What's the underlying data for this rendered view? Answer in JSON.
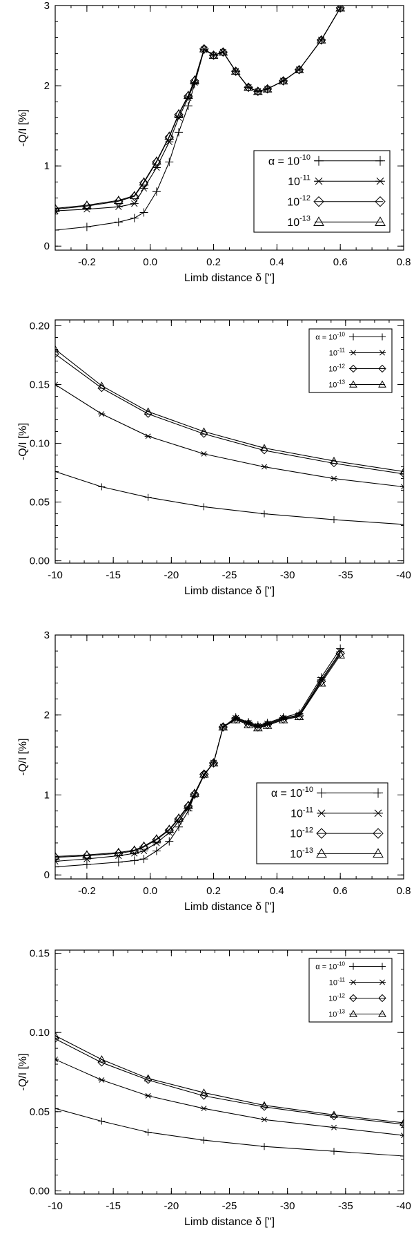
{
  "legend": {
    "alpha_label": "α = 10",
    "labels": [
      "-10",
      "-11",
      "-12",
      "-13"
    ],
    "base": "10"
  },
  "chart_data": [
    {
      "type": "line",
      "title": "",
      "xlabel": "Limb distance δ [\"]",
      "ylabel": "-Q/I [%]",
      "xlim": [
        -0.3,
        0.8
      ],
      "ylim": [
        -0.05,
        3.0
      ],
      "xticks": [
        -0.2,
        0.0,
        0.2,
        0.4,
        0.6,
        0.8
      ],
      "xtick_labels": [
        "-0.2",
        "0.0",
        "0.2",
        "0.4",
        "0.6",
        "0.8"
      ],
      "yticks": [
        0,
        1,
        2,
        3
      ],
      "ytick_labels": [
        "0",
        "1",
        "2",
        "3"
      ],
      "legend_position": "lower-right",
      "series": [
        {
          "name": "α = 10^-10",
          "marker": "plus",
          "x": [
            -0.3,
            -0.2,
            -0.1,
            -0.05,
            -0.02,
            0.02,
            0.06,
            0.09,
            0.12,
            0.14,
            0.17,
            0.2,
            0.23,
            0.27,
            0.31,
            0.34,
            0.37,
            0.42,
            0.47,
            0.54,
            0.6
          ],
          "y": [
            0.2,
            0.24,
            0.3,
            0.35,
            0.42,
            0.68,
            1.05,
            1.42,
            1.75,
            2.02,
            2.45,
            2.38,
            2.42,
            2.18,
            1.98,
            1.93,
            1.96,
            2.06,
            2.2,
            2.57,
            2.97
          ]
        },
        {
          "name": "α = 10^-11",
          "marker": "asterisk",
          "x": [
            -0.3,
            -0.2,
            -0.1,
            -0.05,
            -0.02,
            0.02,
            0.06,
            0.09,
            0.12,
            0.14,
            0.17,
            0.2,
            0.23,
            0.27,
            0.31,
            0.34,
            0.37,
            0.42,
            0.47,
            0.54,
            0.6
          ],
          "y": [
            0.44,
            0.46,
            0.49,
            0.53,
            0.72,
            0.98,
            1.3,
            1.6,
            1.85,
            2.04,
            2.45,
            2.38,
            2.42,
            2.18,
            1.98,
            1.93,
            1.96,
            2.06,
            2.2,
            2.57,
            2.97
          ]
        },
        {
          "name": "α = 10^-12",
          "marker": "diamond",
          "x": [
            -0.3,
            -0.2,
            -0.1,
            -0.05,
            -0.02,
            0.02,
            0.06,
            0.09,
            0.12,
            0.14,
            0.17,
            0.2,
            0.23,
            0.27,
            0.31,
            0.34,
            0.37,
            0.42,
            0.47,
            0.54,
            0.6
          ],
          "y": [
            0.46,
            0.5,
            0.56,
            0.62,
            0.79,
            1.05,
            1.36,
            1.64,
            1.87,
            2.06,
            2.46,
            2.38,
            2.42,
            2.18,
            1.98,
            1.93,
            1.96,
            2.06,
            2.2,
            2.57,
            2.97
          ]
        },
        {
          "name": "α = 10^-13",
          "marker": "triangle",
          "x": [
            -0.3,
            -0.2,
            -0.1,
            -0.05,
            -0.02,
            0.02,
            0.06,
            0.09,
            0.12,
            0.14,
            0.17,
            0.2,
            0.23,
            0.27,
            0.31,
            0.34,
            0.37,
            0.42,
            0.47,
            0.54,
            0.6
          ],
          "y": [
            0.47,
            0.51,
            0.57,
            0.63,
            0.8,
            1.06,
            1.37,
            1.65,
            1.88,
            2.07,
            2.46,
            2.38,
            2.42,
            2.18,
            1.98,
            1.93,
            1.96,
            2.06,
            2.2,
            2.57,
            2.97
          ]
        }
      ]
    },
    {
      "type": "line",
      "title": "",
      "xlabel": "Limb distance δ [\"]",
      "ylabel": "-Q/I [%]",
      "xlim": [
        -10,
        -40
      ],
      "ylim": [
        -0.002,
        0.205
      ],
      "xticks": [
        -10,
        -15,
        -20,
        -25,
        -30,
        -35,
        -40
      ],
      "xtick_labels": [
        "-10",
        "-15",
        "-20",
        "-25",
        "-30",
        "-35",
        "-40"
      ],
      "yticks": [
        0.0,
        0.05,
        0.1,
        0.15,
        0.2
      ],
      "ytick_labels": [
        "0.00",
        "0.05",
        "0.10",
        "0.15",
        "0.20"
      ],
      "legend_position": "top-right",
      "series": [
        {
          "name": "α = 10^-10",
          "marker": "plus",
          "x": [
            -10,
            -14,
            -18,
            -22.8,
            -28,
            -34,
            -40
          ],
          "y": [
            0.076,
            0.063,
            0.054,
            0.046,
            0.04,
            0.035,
            0.031
          ]
        },
        {
          "name": "α = 10^-11",
          "marker": "asterisk",
          "x": [
            -10,
            -14,
            -18,
            -22.8,
            -28,
            -34,
            -40
          ],
          "y": [
            0.15,
            0.125,
            0.106,
            0.091,
            0.08,
            0.07,
            0.063
          ]
        },
        {
          "name": "α = 10^-12",
          "marker": "diamond",
          "x": [
            -10,
            -14,
            -18,
            -22.8,
            -28,
            -34,
            -40
          ],
          "y": [
            0.176,
            0.147,
            0.125,
            0.108,
            0.094,
            0.083,
            0.074
          ]
        },
        {
          "name": "α = 10^-13",
          "marker": "triangle",
          "x": [
            -10,
            -14,
            -18,
            -22.8,
            -28,
            -34,
            -40
          ],
          "y": [
            0.18,
            0.149,
            0.127,
            0.11,
            0.096,
            0.085,
            0.076
          ]
        }
      ]
    },
    {
      "type": "line",
      "title": "",
      "xlabel": "Limb distance δ [\"]",
      "ylabel": "-Q/I [%]",
      "xlim": [
        -0.3,
        0.8
      ],
      "ylim": [
        -0.05,
        3.0
      ],
      "xticks": [
        -0.2,
        0.0,
        0.2,
        0.4,
        0.6,
        0.8
      ],
      "xtick_labels": [
        "-0.2",
        "0.0",
        "0.2",
        "0.4",
        "0.6",
        "0.8"
      ],
      "yticks": [
        0,
        1,
        2,
        3
      ],
      "ytick_labels": [
        "0",
        "1",
        "2",
        "3"
      ],
      "legend_position": "lower-right",
      "series": [
        {
          "name": "α = 10^-10",
          "marker": "plus",
          "x": [
            -0.3,
            -0.2,
            -0.1,
            -0.05,
            -0.02,
            0.02,
            0.06,
            0.09,
            0.12,
            0.14,
            0.17,
            0.2,
            0.23,
            0.27,
            0.31,
            0.34,
            0.37,
            0.42,
            0.47,
            0.54,
            0.6
          ],
          "y": [
            0.1,
            0.13,
            0.16,
            0.18,
            0.2,
            0.3,
            0.42,
            0.6,
            0.8,
            1.0,
            1.25,
            1.4,
            1.85,
            1.97,
            1.91,
            1.87,
            1.9,
            1.97,
            2.02,
            2.47,
            2.83
          ]
        },
        {
          "name": "α = 10^-11",
          "marker": "asterisk",
          "x": [
            -0.3,
            -0.2,
            -0.1,
            -0.05,
            -0.02,
            0.02,
            0.06,
            0.09,
            0.12,
            0.14,
            0.17,
            0.2,
            0.23,
            0.27,
            0.31,
            0.34,
            0.37,
            0.42,
            0.47,
            0.54,
            0.6
          ],
          "y": [
            0.17,
            0.2,
            0.24,
            0.27,
            0.3,
            0.4,
            0.53,
            0.67,
            0.84,
            1.0,
            1.25,
            1.4,
            1.85,
            1.96,
            1.9,
            1.86,
            1.89,
            1.96,
            2.0,
            2.44,
            2.79
          ]
        },
        {
          "name": "α = 10^-12",
          "marker": "diamond",
          "x": [
            -0.3,
            -0.2,
            -0.1,
            -0.05,
            -0.02,
            0.02,
            0.06,
            0.09,
            0.12,
            0.14,
            0.17,
            0.2,
            0.23,
            0.27,
            0.31,
            0.34,
            0.37,
            0.42,
            0.47,
            0.54,
            0.6
          ],
          "y": [
            0.22,
            0.24,
            0.27,
            0.3,
            0.35,
            0.44,
            0.56,
            0.7,
            0.86,
            1.01,
            1.26,
            1.4,
            1.85,
            1.95,
            1.89,
            1.85,
            1.88,
            1.95,
            1.99,
            2.42,
            2.77
          ]
        },
        {
          "name": "α = 10^-13",
          "marker": "triangle",
          "x": [
            -0.3,
            -0.2,
            -0.1,
            -0.05,
            -0.02,
            0.02,
            0.06,
            0.09,
            0.12,
            0.14,
            0.17,
            0.2,
            0.23,
            0.27,
            0.31,
            0.34,
            0.37,
            0.42,
            0.47,
            0.54,
            0.6
          ],
          "y": [
            0.23,
            0.25,
            0.28,
            0.31,
            0.36,
            0.45,
            0.57,
            0.71,
            0.87,
            1.02,
            1.26,
            1.4,
            1.85,
            1.94,
            1.88,
            1.84,
            1.87,
            1.94,
            1.98,
            2.4,
            2.75
          ]
        }
      ]
    },
    {
      "type": "line",
      "title": "",
      "xlabel": "Limb distance δ [\"]",
      "ylabel": "-Q/I [%]",
      "xlim": [
        -10,
        -40
      ],
      "ylim": [
        -0.002,
        0.152
      ],
      "xticks": [
        -10,
        -15,
        -20,
        -25,
        -30,
        -35,
        -40
      ],
      "xtick_labels": [
        "-10",
        "-15",
        "-20",
        "-25",
        "-30",
        "-35",
        "-40"
      ],
      "yticks": [
        0.0,
        0.05,
        0.1,
        0.15
      ],
      "ytick_labels": [
        "0.00",
        "0.05",
        "0.10",
        "0.15"
      ],
      "legend_position": "top-right",
      "series": [
        {
          "name": "α = 10^-10",
          "marker": "plus",
          "x": [
            -10,
            -14,
            -18,
            -22.8,
            -28,
            -34,
            -40
          ],
          "y": [
            0.052,
            0.044,
            0.037,
            0.032,
            0.028,
            0.025,
            0.022
          ]
        },
        {
          "name": "α = 10^-11",
          "marker": "asterisk",
          "x": [
            -10,
            -14,
            -18,
            -22.8,
            -28,
            -34,
            -40
          ],
          "y": [
            0.083,
            0.07,
            0.06,
            0.052,
            0.045,
            0.04,
            0.035
          ]
        },
        {
          "name": "α = 10^-12",
          "marker": "diamond",
          "x": [
            -10,
            -14,
            -18,
            -22.8,
            -28,
            -34,
            -40
          ],
          "y": [
            0.096,
            0.081,
            0.07,
            0.06,
            0.053,
            0.047,
            0.042
          ]
        },
        {
          "name": "α = 10^-13",
          "marker": "triangle",
          "x": [
            -10,
            -14,
            -18,
            -22.8,
            -28,
            -34,
            -40
          ],
          "y": [
            0.098,
            0.083,
            0.071,
            0.062,
            0.054,
            0.048,
            0.043
          ]
        }
      ]
    }
  ]
}
